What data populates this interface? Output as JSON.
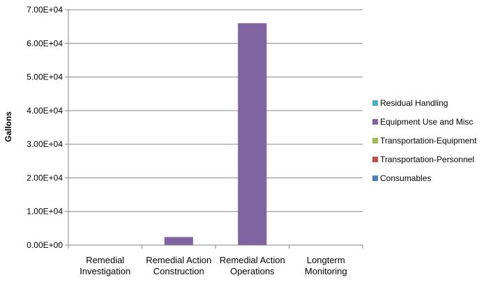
{
  "chart_data": {
    "type": "bar",
    "stacked": true,
    "ylabel": "Gallons",
    "xlabel": "",
    "ylim": [
      0,
      70000
    ],
    "y_ticks": [
      "0.00E+00",
      "1.00E+04",
      "2.00E+04",
      "3.00E+04",
      "4.00E+04",
      "5.00E+04",
      "6.00E+04",
      "7.00E+04"
    ],
    "y_tick_values": [
      0,
      10000,
      20000,
      30000,
      40000,
      50000,
      60000,
      70000
    ],
    "grid": true,
    "legend_position": "right",
    "categories": [
      [
        "Remedial",
        "Investigation"
      ],
      [
        "Remedial Action",
        "Construction"
      ],
      [
        "Remedial Action",
        "Operations"
      ],
      [
        "Longterm",
        "Monitoring"
      ]
    ],
    "series": [
      {
        "name": "Consumables",
        "color": "#4F81BD",
        "values": [
          0,
          0,
          0,
          0
        ]
      },
      {
        "name": "Transportation-Personnel",
        "color": "#C0504D",
        "values": [
          0,
          0,
          0,
          0
        ]
      },
      {
        "name": "Transportation-Equipment",
        "color": "#9BBB59",
        "values": [
          0,
          0,
          0,
          0
        ]
      },
      {
        "name": "Equipment Use and Misc",
        "color": "#8064A2",
        "values": [
          0,
          2400,
          66000,
          0
        ]
      },
      {
        "name": "Residual Handling",
        "color": "#4BACC6",
        "values": [
          0,
          0,
          0,
          0
        ]
      }
    ],
    "legend_order": [
      "Residual Handling",
      "Equipment Use and Misc",
      "Transportation-Equipment",
      "Transportation-Personnel",
      "Consumables"
    ]
  }
}
